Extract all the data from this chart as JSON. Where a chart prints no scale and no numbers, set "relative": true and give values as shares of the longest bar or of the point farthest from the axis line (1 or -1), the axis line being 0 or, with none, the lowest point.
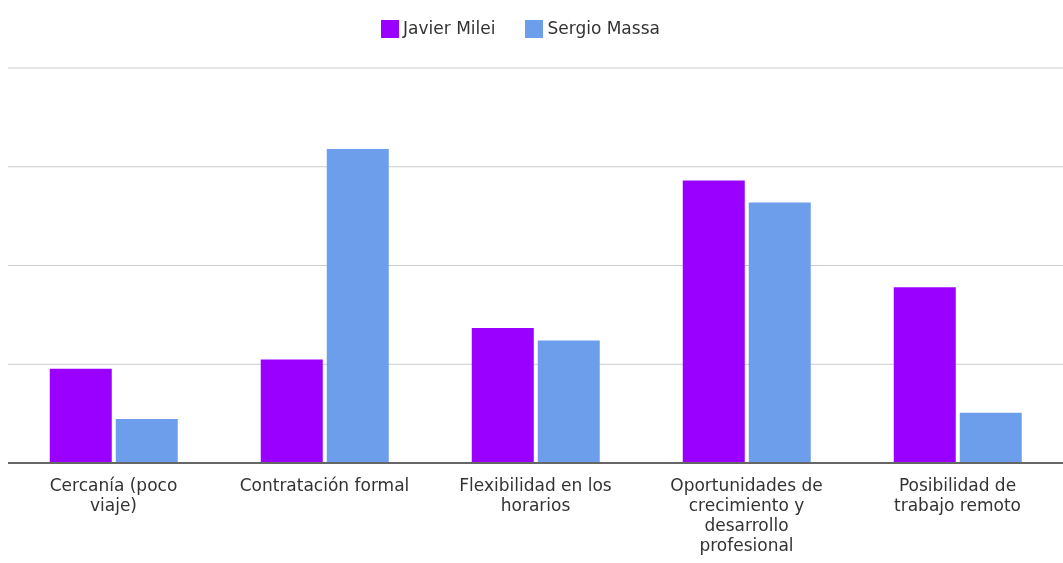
{
  "chart_data": {
    "type": "bar",
    "relative": true,
    "categories": [
      "Cercanía (poco viaje)",
      "Contratación formal",
      "Flexibilidad en los horarios",
      "Oportunidades de crecimiento y desarrollo profesional",
      "Posibilidad de trabajo remoto"
    ],
    "series": [
      {
        "name": "Javier Milei",
        "color": "#9900ff",
        "values": [
          0.3,
          0.33,
          0.43,
          0.9,
          0.56
        ]
      },
      {
        "name": "Sergio Massa",
        "color": "#6d9eeb",
        "values": [
          0.14,
          1,
          0.39,
          0.83,
          0.16
        ]
      }
    ],
    "grid": "y",
    "legend": "top"
  }
}
